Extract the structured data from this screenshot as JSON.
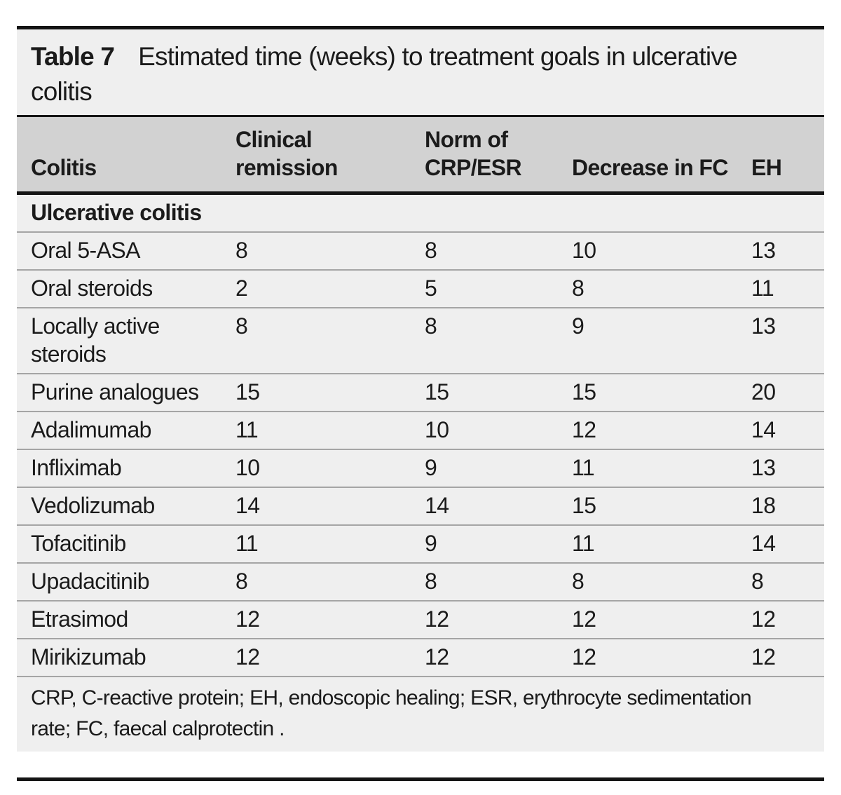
{
  "caption": {
    "label": "Table 7",
    "text": "Estimated time (weeks) to treatment goals in ulcerative\ncolitis"
  },
  "header": {
    "col1": "Colitis",
    "col2": "Clinical\nremission",
    "col3": "Norm of\nCRP/ESR",
    "col4": "Decrease in FC",
    "col5": "EH"
  },
  "section_header": "Ulcerative colitis",
  "rows": [
    {
      "name": "Oral 5-ASA",
      "clinical_remission": "8",
      "norm_crp_esr": "8",
      "decrease_fc": "10",
      "eh": "13"
    },
    {
      "name": "Oral steroids",
      "clinical_remission": "2",
      "norm_crp_esr": "5",
      "decrease_fc": "8",
      "eh": "11"
    },
    {
      "name": "Locally active\nsteroids",
      "clinical_remission": "8",
      "norm_crp_esr": "8",
      "decrease_fc": "9",
      "eh": "13"
    },
    {
      "name": "Purine analogues",
      "clinical_remission": "15",
      "norm_crp_esr": "15",
      "decrease_fc": "15",
      "eh": "20"
    },
    {
      "name": "Adalimumab",
      "clinical_remission": "11",
      "norm_crp_esr": "10",
      "decrease_fc": "12",
      "eh": "14"
    },
    {
      "name": "Infliximab",
      "clinical_remission": "10",
      "norm_crp_esr": "9",
      "decrease_fc": "11",
      "eh": "13"
    },
    {
      "name": "Vedolizumab",
      "clinical_remission": "14",
      "norm_crp_esr": "14",
      "decrease_fc": "15",
      "eh": "18"
    },
    {
      "name": "Tofacitinib",
      "clinical_remission": "11",
      "norm_crp_esr": "9",
      "decrease_fc": "11",
      "eh": "14"
    },
    {
      "name": "Upadacitinib",
      "clinical_remission": "8",
      "norm_crp_esr": "8",
      "decrease_fc": "8",
      "eh": "8"
    },
    {
      "name": "Etrasimod",
      "clinical_remission": "12",
      "norm_crp_esr": "12",
      "decrease_fc": "12",
      "eh": "12"
    },
    {
      "name": "Mirikizumab",
      "clinical_remission": "12",
      "norm_crp_esr": "12",
      "decrease_fc": "12",
      "eh": "12"
    }
  ],
  "footnote": "CRP, C-reactive protein; EH, endoscopic healing; ESR, erythrocyte sedimentation\nrate; FC, faecal calprotectin .",
  "colors": {
    "caption_bg": "#efefef",
    "header_bg": "#d2d2d2",
    "body_bg": "#efefef",
    "row_divider": "#a5a5a5",
    "rule": "#141414",
    "text": "#1b1b1b"
  }
}
